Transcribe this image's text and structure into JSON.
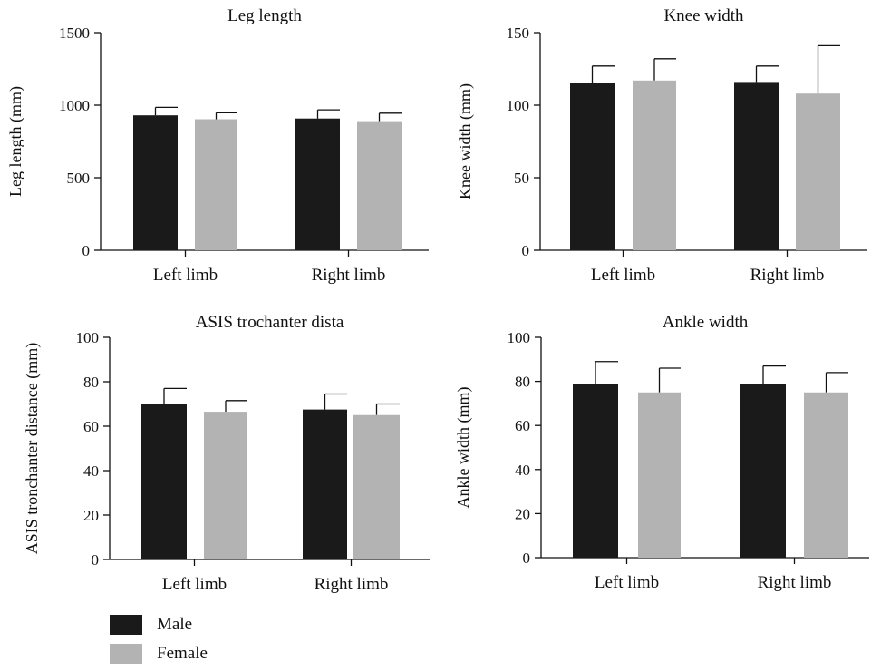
{
  "legend": {
    "male": {
      "label": "Male",
      "color": "#1a1a1a"
    },
    "female": {
      "label": "Female",
      "color": "#b3b3b3"
    }
  },
  "chart_data": [
    {
      "type": "bar",
      "title": "Leg length",
      "ylabel": "Leg length (mm)",
      "xlabel": "",
      "categories": [
        "Left limb",
        "Right limb"
      ],
      "ylim": [
        0,
        1500
      ],
      "yticks": [
        0,
        500,
        1000,
        1500
      ],
      "series": [
        {
          "name": "Male",
          "values": [
            930,
            908
          ],
          "errors": [
            55,
            60
          ]
        },
        {
          "name": "Female",
          "values": [
            903,
            890
          ],
          "errors": [
            45,
            55
          ]
        }
      ]
    },
    {
      "type": "bar",
      "title": "Knee width",
      "ylabel": "Knee width (mm)",
      "xlabel": "",
      "categories": [
        "Left limb",
        "Right limb"
      ],
      "ylim": [
        0,
        150
      ],
      "yticks": [
        0,
        50,
        100,
        150
      ],
      "series": [
        {
          "name": "Male",
          "values": [
            115,
            116
          ],
          "errors": [
            12,
            11
          ]
        },
        {
          "name": "Female",
          "values": [
            117,
            108
          ],
          "errors": [
            15,
            33
          ]
        }
      ]
    },
    {
      "type": "bar",
      "title": "ASIS trochanter dista",
      "ylabel": "ASIS tronchanter distance (mm)",
      "xlabel": "",
      "categories": [
        "Left limb",
        "Right limb"
      ],
      "ylim": [
        0,
        100
      ],
      "yticks": [
        0,
        20,
        40,
        60,
        80,
        100
      ],
      "series": [
        {
          "name": "Male",
          "values": [
            70,
            67.5
          ],
          "errors": [
            7,
            7
          ]
        },
        {
          "name": "Female",
          "values": [
            66.5,
            65
          ],
          "errors": [
            5,
            5
          ]
        }
      ]
    },
    {
      "type": "bar",
      "title": "Ankle width",
      "ylabel": "Ankle width (mm)",
      "xlabel": "",
      "categories": [
        "Left limb",
        "Right limb"
      ],
      "ylim": [
        0,
        100
      ],
      "yticks": [
        0,
        20,
        40,
        60,
        80,
        100
      ],
      "series": [
        {
          "name": "Male",
          "values": [
            79,
            79
          ],
          "errors": [
            10,
            8
          ]
        },
        {
          "name": "Female",
          "values": [
            75,
            75
          ],
          "errors": [
            11,
            9
          ]
        }
      ]
    }
  ]
}
